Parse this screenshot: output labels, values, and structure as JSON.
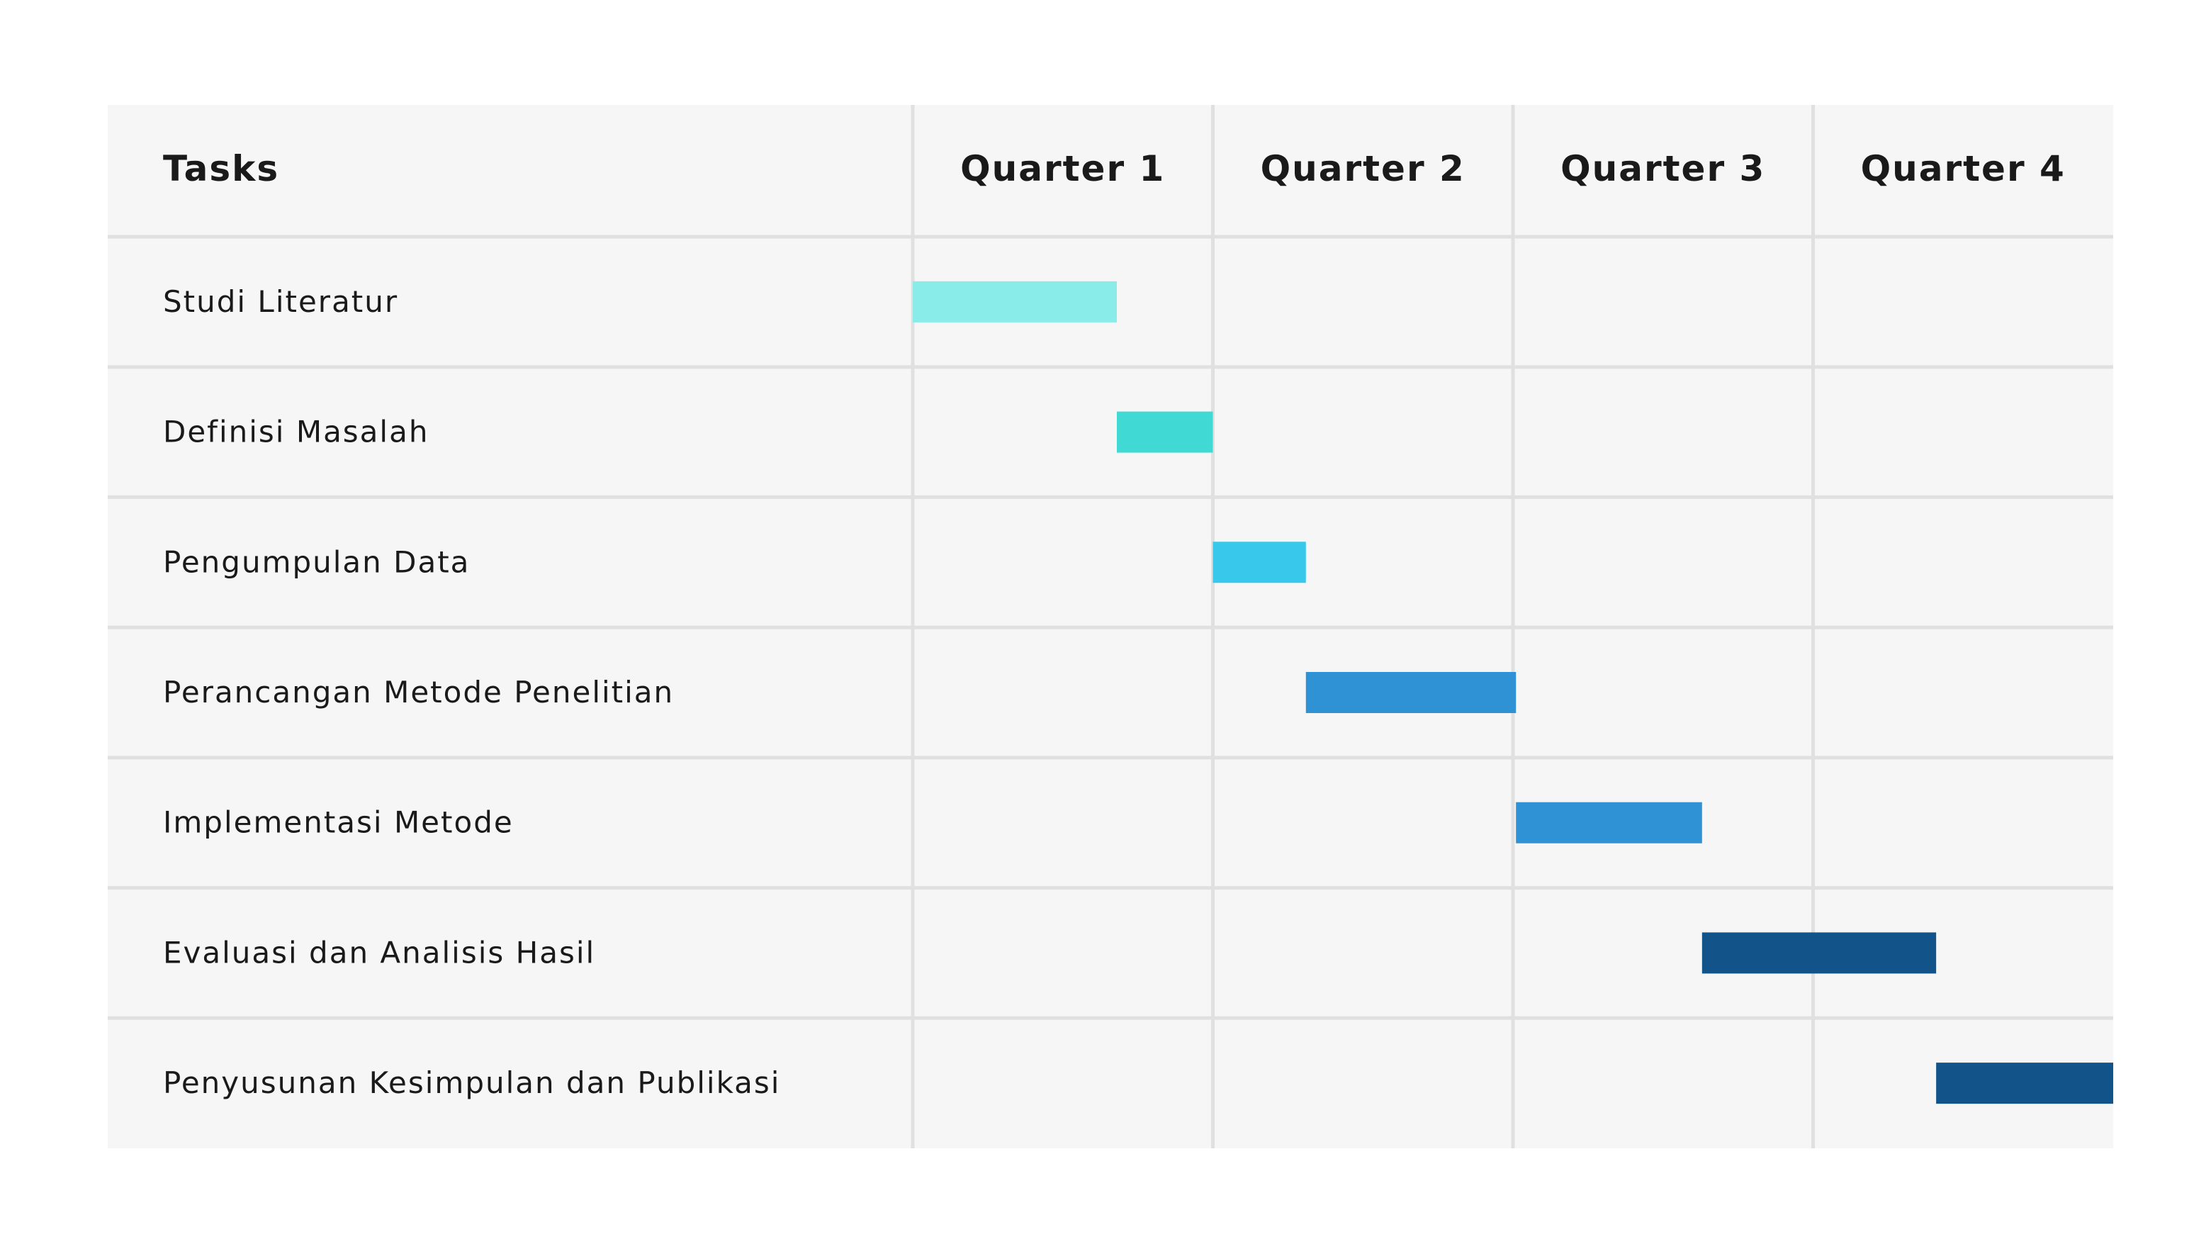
{
  "chart_data": {
    "type": "gantt",
    "header": {
      "tasks_label": "Tasks"
    },
    "quarters": [
      "Quarter 1",
      "Quarter 2",
      "Quarter 3",
      "Quarter 4"
    ],
    "x_range": [
      0,
      4
    ],
    "tasks": [
      {
        "name": "Studi Literatur",
        "start": 0.0,
        "end": 0.68,
        "color": "#8aece8"
      },
      {
        "name": "Definisi Masalah",
        "start": 0.68,
        "end": 1.0,
        "color": "#40d9d4"
      },
      {
        "name": "Pengumpulan Data",
        "start": 1.0,
        "end": 1.31,
        "color": "#38c8ec"
      },
      {
        "name": "Perancangan Metode Penelitian",
        "start": 1.31,
        "end": 2.01,
        "color": "#2e92d5"
      },
      {
        "name": "Implementasi Metode",
        "start": 2.01,
        "end": 2.63,
        "color": "#2e92d5"
      },
      {
        "name": "Evaluasi dan Analisis Hasil",
        "start": 2.63,
        "end": 3.41,
        "color": "#12548a"
      },
      {
        "name": "Penyusunan Kesimpulan dan Publikasi",
        "start": 3.41,
        "end": 4.0,
        "color": "#12548a"
      }
    ],
    "colors": {
      "panel_background": "#f6f6f6",
      "grid_line": "#e0e0e0",
      "text": "#1a1a1a"
    }
  }
}
